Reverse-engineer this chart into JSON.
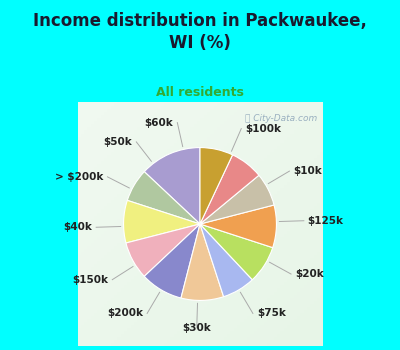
{
  "title": "Income distribution in Packwaukee,\nWI (%)",
  "subtitle": "All residents",
  "background_color": "#00FFFF",
  "watermark": "City-Data.com",
  "labels": [
    "$100k",
    "$10k",
    "$125k",
    "$20k",
    "$75k",
    "$30k",
    "$200k",
    "$150k",
    "$40k",
    "> $200k",
    "$50k",
    "$60k"
  ],
  "values": [
    13,
    7,
    9,
    8,
    9,
    9,
    7,
    8,
    9,
    7,
    7,
    7
  ],
  "colors": [
    "#a89cd0",
    "#b0c8a0",
    "#f0f080",
    "#f0b0bc",
    "#8888cc",
    "#f0c898",
    "#a8b8f0",
    "#b8e060",
    "#f0a050",
    "#c8c0a8",
    "#e88888",
    "#c8a030"
  ],
  "label_fontsize": 7.5,
  "title_fontsize": 12,
  "subtitle_fontsize": 9,
  "title_color": "#1a1a2e",
  "subtitle_color": "#33aa33",
  "startangle": 90
}
